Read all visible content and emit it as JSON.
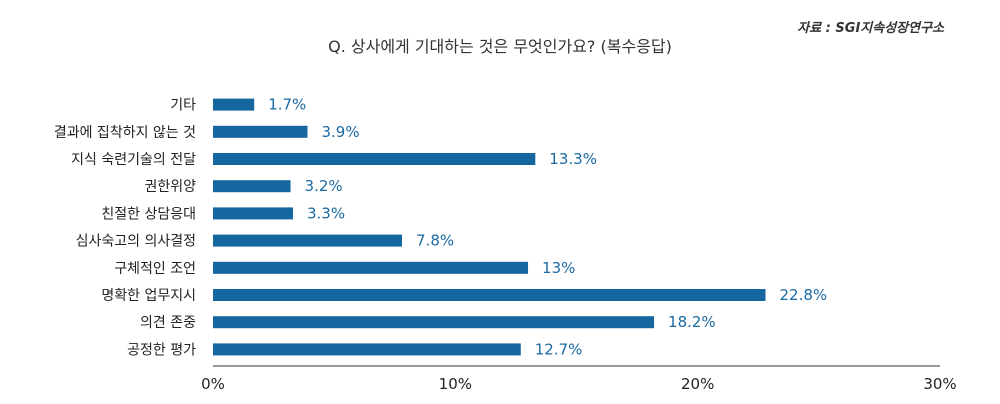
{
  "source": "자료 : SGI지속성장연구소",
  "chart_data": {
    "type": "bar",
    "orientation": "horizontal",
    "title": "Q. 상사에게 기대하는 것은 무엇인가요? (복수응답)",
    "categories": [
      "기타",
      "결과에 집착하지 않는 것",
      "지식 숙련기술의 전달",
      "권한위양",
      "친절한 상담응대",
      "심사숙고의 의사결정",
      "구체적인 조언",
      "명확한 업무지시",
      "의견 존중",
      "공정한 평가"
    ],
    "values": [
      1.7,
      3.9,
      13.3,
      3.2,
      3.3,
      7.8,
      13,
      22.8,
      18.2,
      12.7
    ],
    "value_labels": [
      "1.7%",
      "3.9%",
      "13.3%",
      "3.2%",
      "3.3%",
      "7.8%",
      "13%",
      "22.8%",
      "18.2%",
      "12.7%"
    ],
    "xlim": [
      0,
      30
    ],
    "xticks": [
      "0%",
      "10%",
      "20%",
      "30%"
    ],
    "bar_color": "#1666a0",
    "label_color": "#1a6aa3",
    "grid": false
  }
}
